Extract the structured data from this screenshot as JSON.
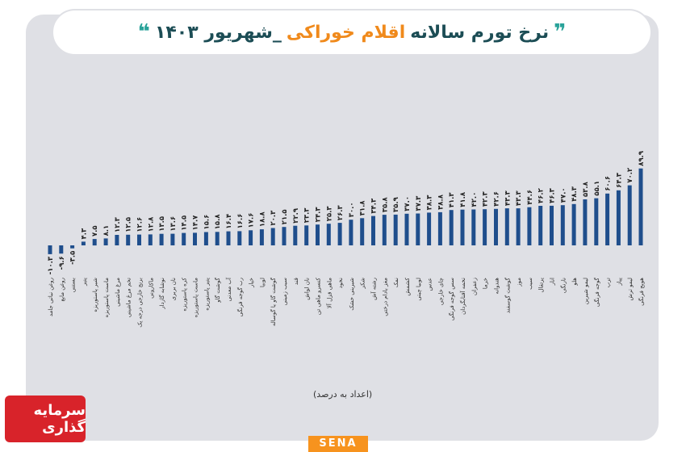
{
  "header": {
    "title_part1": "نرخ تورم سالانه",
    "title_part2": "اقلام خوراکی",
    "title_part3": "_شهریور ۱۴۰۳",
    "quote_open": "❞",
    "quote_close": "❝"
  },
  "unit_note": "(اعداد به درصد)",
  "logo_text": "سرمایه گذاری",
  "sena_label": "SENA",
  "colors": {
    "bar": "#1f4e8c",
    "panel": "#dfe0e5",
    "accent": "#f08a1c",
    "title": "#1c4d55"
  },
  "chart_data": {
    "type": "bar",
    "title": "نرخ تورم سالانه اقلام خوراکی _شهریور ۱۴۰۳",
    "xlabel": "",
    "ylabel": "",
    "ylim": [
      -12,
      90
    ],
    "categories": [
      "روغن نباتی جامد",
      "روغن مایع",
      "بستنی",
      "پنیر",
      "شیر پاستوریزه",
      "ماست پاستوریزه",
      "مرغ ماشینی",
      "تخم مرغ ماشینی",
      "برنج خارجی درجه یک",
      "ماکارونی",
      "نوشابه گازدار",
      "نان بربری",
      "کره پاستوریزه",
      "ماست پاستوریزه",
      "پنیر پاستوریزه",
      "گوشت گاو",
      "آب معدنی",
      "رب گوجه فرنگی",
      "خیار",
      "لوبیا",
      "گوشت گاو یا گوساله",
      "سیب زمینی",
      "قند",
      "نان لواش",
      "کنسرو ماهی تن",
      "ماهی قزل آلا",
      "نخود",
      "شیرینی خشک",
      "شکر",
      "رشته آش",
      "مغز بادام درختی",
      "نمک",
      "کشمش",
      "لوبیا چیتی",
      "عدس",
      "چای خارجی",
      "سس گوجه فرنگی",
      "تخمه آفتابگردان",
      "زعفران",
      "خرما",
      "هندوانه",
      "گوشت گوسفند",
      "موز",
      "سیب",
      "پرتقال",
      "انار",
      "نارنگی",
      "هلو",
      "لیمو شیرین",
      "گوجه فرنگی",
      "ترب",
      "پیاز",
      "لیمو ترش",
      "هویج فرنگی"
    ],
    "values": [
      -10.3,
      -9.6,
      -3.5,
      4.3,
      7.5,
      8.1,
      12.3,
      12.5,
      12.6,
      12.8,
      13.5,
      13.6,
      14.5,
      14.7,
      15.6,
      15.8,
      16.4,
      16.6,
      17.6,
      18.8,
      20.3,
      21.5,
      22.9,
      23.3,
      24.3,
      25.3,
      26.3,
      30.0,
      31.8,
      34.3,
      35.8,
      35.9,
      37.0,
      37.3,
      38.3,
      38.8,
      41.3,
      41.8,
      42.0,
      42.3,
      42.6,
      43.3,
      43.3,
      44.6,
      46.2,
      46.3,
      47.0,
      48.3,
      53.8,
      55.1,
      60.6,
      64.3,
      70.2,
      89.9
    ],
    "value_labels": [
      "-۱۰.۳",
      "-۹.۶",
      "-۳.۵",
      "۴.۳",
      "۷.۵",
      "۸.۱",
      "۱۲.۳",
      "۱۲.۵",
      "۱۲.۶",
      "۱۲.۸",
      "۱۳.۵",
      "۱۳.۶",
      "۱۴.۵",
      "۱۴.۷",
      "۱۵.۶",
      "۱۵.۸",
      "۱۶.۴",
      "۱۶.۶",
      "۱۷.۶",
      "۱۸.۸",
      "۲۰.۳",
      "۲۱.۵",
      "۲۲.۹",
      "۲۳.۳",
      "۲۴.۳",
      "۲۵.۳",
      "۲۶.۳",
      "۳۰.۰",
      "۳۱.۸",
      "۳۴.۳",
      "۳۵.۸",
      "۳۵.۹",
      "۳۷.۰",
      "۳۷.۳",
      "۳۸.۳",
      "۳۸.۸",
      "۴۱.۳",
      "۴۱.۸",
      "۴۲.۰",
      "۴۲.۳",
      "۴۲.۶",
      "۴۳.۳",
      "۴۳.۳",
      "۴۴.۶",
      "۴۶.۲",
      "۴۶.۳",
      "۴۷.۰",
      "۴۸.۳",
      "۵۳.۸",
      "۵۵.۱",
      "۶۰.۶",
      "۶۴.۳",
      "۷۰.۲",
      "۸۹.۹"
    ],
    "grid": false,
    "legend": "none"
  }
}
